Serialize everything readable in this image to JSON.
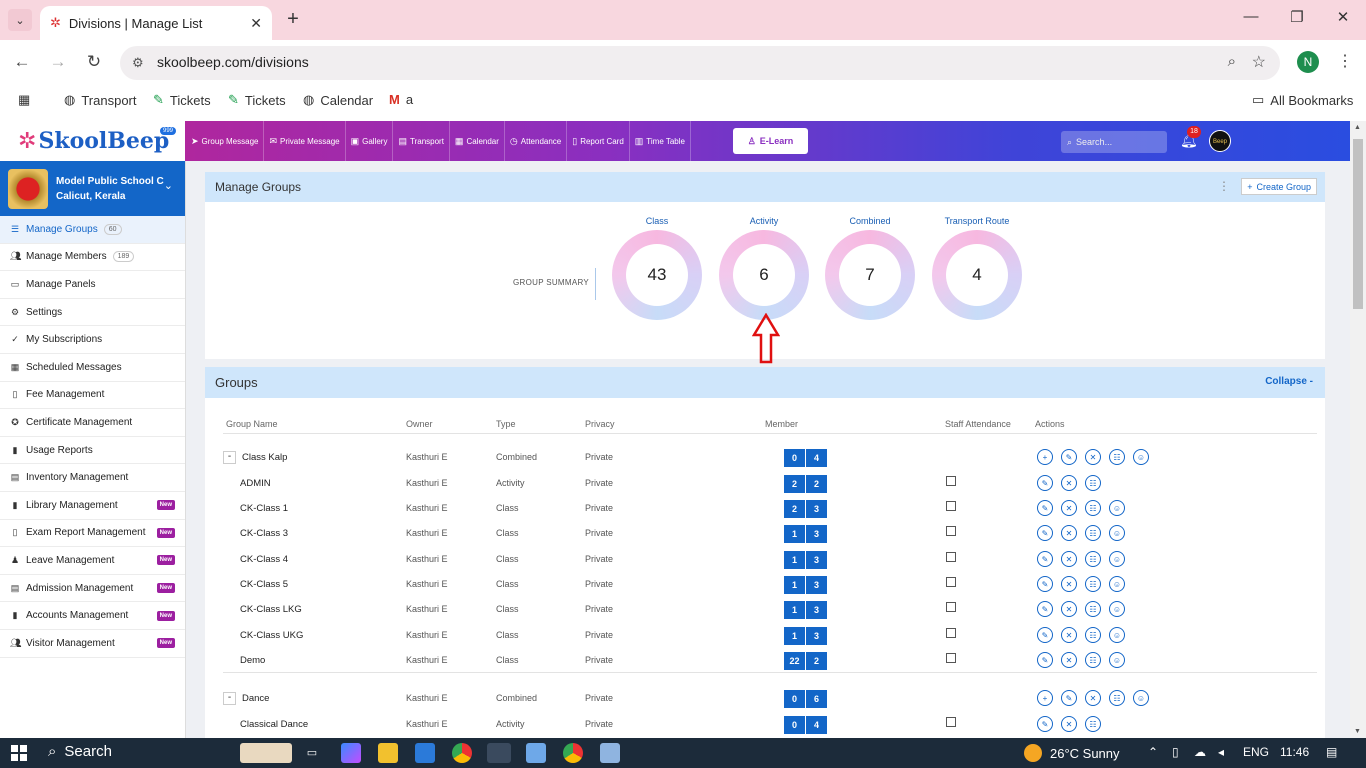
{
  "browser": {
    "tab_title": "Divisions | Manage List",
    "url": "skoolbeep.com/divisions",
    "profile_initial": "N",
    "bookmarks": [
      "Transport",
      "Tickets",
      "Tickets",
      "Calendar",
      "a"
    ],
    "all_bookmarks": "All Bookmarks"
  },
  "app": {
    "logo": "SkoolBeep",
    "nav": [
      "Group Message",
      "Private Message",
      "Gallery",
      "Transport",
      "Calendar",
      "Attendance",
      "Report Card",
      "Time Table"
    ],
    "private_message_badge": "999",
    "elearn": "E-Learn",
    "search_placeholder": "Search...",
    "notification_count": "18",
    "avatar_text": "Beep"
  },
  "sidebar": {
    "school_name": "Model Public School C",
    "school_location": "Calicut, Kerala",
    "items": [
      {
        "label": "Manage Groups",
        "count": "60"
      },
      {
        "label": "Manage Members",
        "count": "189"
      },
      {
        "label": "Manage Panels"
      },
      {
        "label": "Settings"
      },
      {
        "label": "My Subscriptions"
      },
      {
        "label": "Scheduled Messages"
      },
      {
        "label": "Fee Management"
      },
      {
        "label": "Certificate Management"
      },
      {
        "label": "Usage Reports"
      },
      {
        "label": "Inventory Management"
      },
      {
        "label": "Library Management",
        "badge": "New"
      },
      {
        "label": "Exam Report Management",
        "badge": "New"
      },
      {
        "label": "Leave Management",
        "badge": "New"
      },
      {
        "label": "Admission Management",
        "badge": "New"
      },
      {
        "label": "Accounts Management",
        "badge": "New"
      },
      {
        "label": "Visitor Management",
        "badge": "New"
      }
    ]
  },
  "manage_groups": {
    "title": "Manage Groups",
    "create_button": "Create Group",
    "summary_label": "GROUP SUMMARY",
    "summary": [
      {
        "label": "Class",
        "value": "43"
      },
      {
        "label": "Activity",
        "value": "6"
      },
      {
        "label": "Combined",
        "value": "7"
      },
      {
        "label": "Transport Route",
        "value": "4"
      }
    ]
  },
  "groups": {
    "title": "Groups",
    "collapse": "Collapse -",
    "columns": [
      "Group Name",
      "Owner",
      "Type",
      "Privacy",
      "Member",
      "Staff Attendance",
      "Actions"
    ],
    "rows": [
      {
        "name": "Class Kalp",
        "owner": "Kasthuri E",
        "type": "Combined",
        "privacy": "Private",
        "m1": "0",
        "m2": "4",
        "parent": true
      },
      {
        "name": "ADMIN",
        "owner": "Kasthuri E",
        "type": "Activity",
        "privacy": "Private",
        "m1": "2",
        "m2": "2"
      },
      {
        "name": "CK-Class 1",
        "owner": "Kasthuri E",
        "type": "Class",
        "privacy": "Private",
        "m1": "2",
        "m2": "3"
      },
      {
        "name": "CK-Class 3",
        "owner": "Kasthuri E",
        "type": "Class",
        "privacy": "Private",
        "m1": "1",
        "m2": "3"
      },
      {
        "name": "CK-Class 4",
        "owner": "Kasthuri E",
        "type": "Class",
        "privacy": "Private",
        "m1": "1",
        "m2": "3"
      },
      {
        "name": "CK-Class 5",
        "owner": "Kasthuri E",
        "type": "Class",
        "privacy": "Private",
        "m1": "1",
        "m2": "3"
      },
      {
        "name": "CK-Class LKG",
        "owner": "Kasthuri E",
        "type": "Class",
        "privacy": "Private",
        "m1": "1",
        "m2": "3"
      },
      {
        "name": "CK-Class UKG",
        "owner": "Kasthuri E",
        "type": "Class",
        "privacy": "Private",
        "m1": "1",
        "m2": "3"
      },
      {
        "name": "Demo",
        "owner": "Kasthuri E",
        "type": "Class",
        "privacy": "Private",
        "m1": "22",
        "m2": "2"
      },
      {
        "name": "Dance",
        "owner": "Kasthuri E",
        "type": "Combined",
        "privacy": "Private",
        "m1": "0",
        "m2": "6",
        "parent": true
      },
      {
        "name": "Classical Dance",
        "owner": "Kasthuri E",
        "type": "Activity",
        "privacy": "Private",
        "m1": "0",
        "m2": "4"
      }
    ]
  },
  "taskbar": {
    "search": "Search",
    "weather": "26°C  Sunny",
    "lang": "ENG",
    "time": "11:46"
  },
  "colors": {
    "primary": "#1366c8",
    "header_start": "#c0238f",
    "header_end": "#2a4de0",
    "new_badge": "#9c1fa0"
  }
}
